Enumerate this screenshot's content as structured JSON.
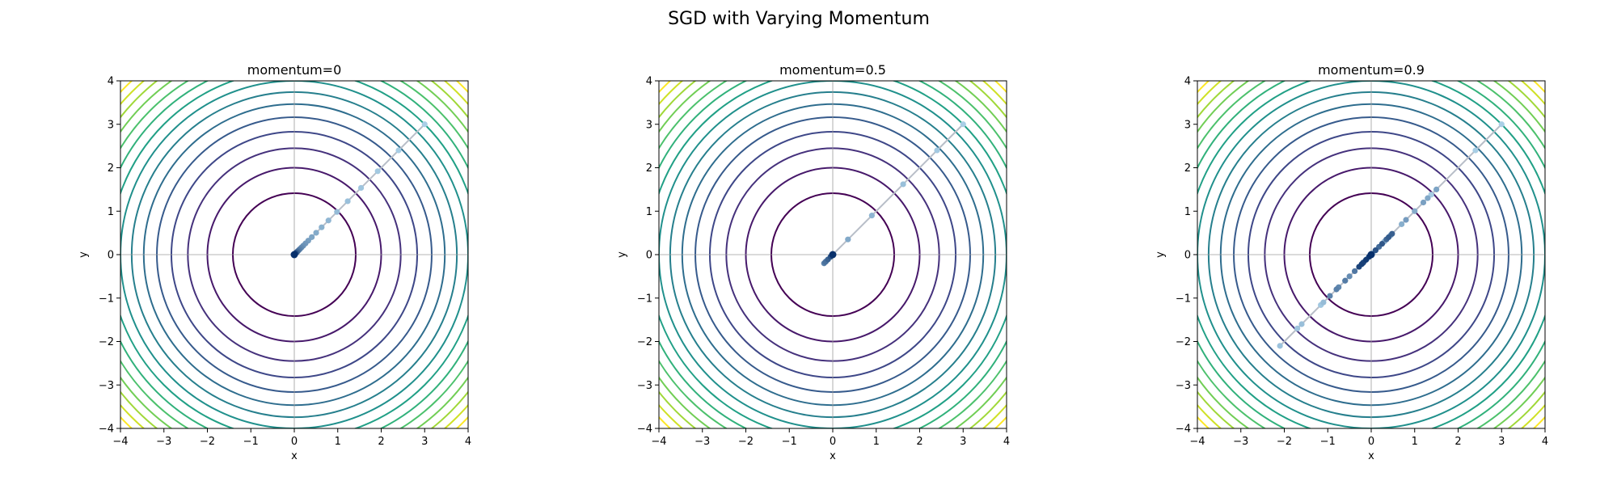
{
  "figure": {
    "suptitle": "SGD with Varying Momentum"
  },
  "chart_data": [
    {
      "type": "line",
      "title": "momentum=0",
      "xlabel": "x",
      "ylabel": "y",
      "xlim": [
        -4,
        4
      ],
      "ylim": [
        -4,
        4
      ],
      "xticks": [
        "−4",
        "−3",
        "−2",
        "−1",
        "0",
        "1",
        "2",
        "3",
        "4"
      ],
      "yticks": [
        "−4",
        "−3",
        "−2",
        "−1",
        "0",
        "1",
        "2",
        "3",
        "4"
      ],
      "reference_lines": {
        "x": 0,
        "y": 0
      },
      "contour_levels": [
        2,
        4,
        6,
        8,
        10,
        12,
        14,
        16,
        18,
        20,
        22,
        24,
        26,
        28,
        30
      ],
      "trajectory": [
        [
          3.0,
          3.0
        ],
        [
          2.4,
          2.4
        ],
        [
          1.92,
          1.92
        ],
        [
          1.536,
          1.536
        ],
        [
          1.229,
          1.229
        ],
        [
          0.983,
          0.983
        ],
        [
          0.786,
          0.786
        ],
        [
          0.629,
          0.629
        ],
        [
          0.503,
          0.503
        ],
        [
          0.403,
          0.403
        ],
        [
          0.322,
          0.322
        ],
        [
          0.258,
          0.258
        ],
        [
          0.206,
          0.206
        ],
        [
          0.165,
          0.165
        ],
        [
          0.132,
          0.132
        ],
        [
          0.106,
          0.106
        ],
        [
          0.084,
          0.084
        ],
        [
          0.068,
          0.068
        ],
        [
          0.054,
          0.054
        ],
        [
          0.043,
          0.043
        ],
        [
          0.035,
          0.035
        ],
        [
          0.028,
          0.028
        ],
        [
          0.022,
          0.022
        ],
        [
          0.018,
          0.018
        ],
        [
          0.014,
          0.014
        ],
        [
          0.0,
          0.0
        ]
      ]
    },
    {
      "type": "line",
      "title": "momentum=0.5",
      "xlabel": "x",
      "ylabel": "y",
      "xlim": [
        -4,
        4
      ],
      "ylim": [
        -4,
        4
      ],
      "xticks": [
        "−4",
        "−3",
        "−2",
        "−1",
        "0",
        "1",
        "2",
        "3",
        "4"
      ],
      "yticks": [
        "−4",
        "−3",
        "−2",
        "−1",
        "0",
        "1",
        "2",
        "3",
        "4"
      ],
      "reference_lines": {
        "x": 0,
        "y": 0
      },
      "contour_levels": [
        2,
        4,
        6,
        8,
        10,
        12,
        14,
        16,
        18,
        20,
        22,
        24,
        26,
        28,
        30
      ],
      "trajectory": [
        [
          3.0,
          3.0
        ],
        [
          2.4,
          2.4
        ],
        [
          1.62,
          1.62
        ],
        [
          0.9,
          0.9
        ],
        [
          0.35,
          0.35
        ],
        [
          0.0,
          0.0
        ],
        [
          -0.15,
          -0.15
        ],
        [
          -0.2,
          -0.2
        ],
        [
          -0.17,
          -0.17
        ],
        [
          -0.11,
          -0.11
        ],
        [
          -0.05,
          -0.05
        ],
        [
          -0.01,
          -0.01
        ],
        [
          0.0,
          0.0
        ]
      ]
    },
    {
      "type": "line",
      "title": "momentum=0.9",
      "xlabel": "x",
      "ylabel": "y",
      "xlim": [
        -4,
        4
      ],
      "ylim": [
        -4,
        4
      ],
      "xticks": [
        "−4",
        "−3",
        "−2",
        "−1",
        "0",
        "1",
        "2",
        "3",
        "4"
      ],
      "yticks": [
        "−4",
        "−3",
        "−2",
        "−1",
        "0",
        "1",
        "2",
        "3",
        "4"
      ],
      "reference_lines": {
        "x": 0,
        "y": 0
      },
      "contour_levels": [
        2,
        4,
        6,
        8,
        10,
        12,
        14,
        16,
        18,
        20,
        22,
        24,
        26,
        28,
        30
      ],
      "trajectory": [
        [
          3.0,
          3.0
        ],
        [
          2.4,
          2.4
        ],
        [
          1.38,
          1.38
        ],
        [
          0.03,
          0.03
        ],
        [
          -1.16,
          -1.16
        ],
        [
          -1.7,
          -1.7
        ],
        [
          -2.1,
          -2.1
        ],
        [
          -1.6,
          -1.6
        ],
        [
          -1.1,
          -1.1
        ],
        [
          -0.6,
          -0.6
        ],
        [
          -0.1,
          -0.1
        ],
        [
          0.3,
          0.3
        ],
        [
          0.7,
          0.7
        ],
        [
          1.0,
          1.0
        ],
        [
          1.3,
          1.3
        ],
        [
          1.5,
          1.5
        ],
        [
          1.2,
          1.2
        ],
        [
          0.8,
          0.8
        ],
        [
          0.45,
          0.45
        ],
        [
          0.1,
          0.1
        ],
        [
          -0.2,
          -0.2
        ],
        [
          -0.5,
          -0.5
        ],
        [
          -0.75,
          -0.75
        ],
        [
          -0.95,
          -0.95
        ],
        [
          -0.8,
          -0.8
        ],
        [
          -0.6,
          -0.6
        ],
        [
          -0.38,
          -0.38
        ],
        [
          -0.18,
          -0.18
        ],
        [
          0.0,
          0.0
        ],
        [
          0.18,
          0.18
        ],
        [
          0.35,
          0.35
        ],
        [
          0.48,
          0.48
        ],
        [
          0.4,
          0.4
        ],
        [
          0.25,
          0.25
        ],
        [
          0.1,
          0.1
        ],
        [
          -0.05,
          -0.05
        ],
        [
          -0.18,
          -0.18
        ],
        [
          -0.28,
          -0.28
        ],
        [
          -0.22,
          -0.22
        ],
        [
          -0.12,
          -0.12
        ],
        [
          -0.04,
          -0.04
        ],
        [
          0.0,
          0.0
        ]
      ]
    }
  ],
  "style": {
    "path_line_color": "#b8bec8",
    "marker_color_start": "#a9cfe6",
    "marker_color_end": "#08306b",
    "refline_color": "#9b9b9b"
  }
}
